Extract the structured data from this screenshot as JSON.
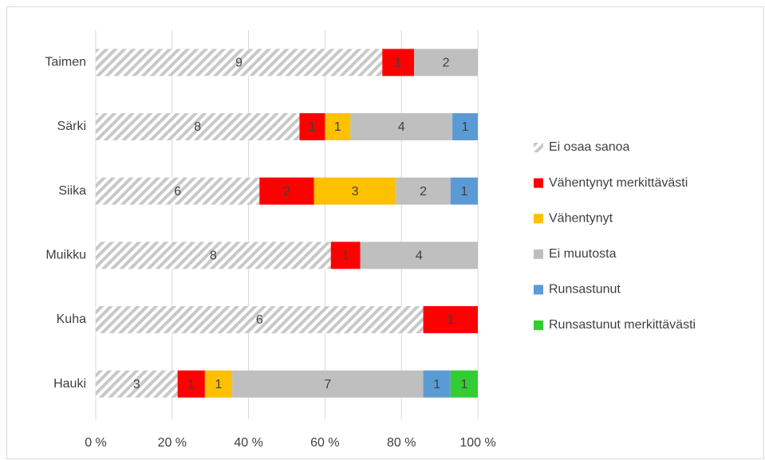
{
  "chart_data": {
    "type": "bar",
    "orientation": "horizontal",
    "stacking": "percent",
    "categories": [
      "Taimen",
      "Särki",
      "Siika",
      "Muikku",
      "Kuha",
      "Hauki"
    ],
    "series": [
      {
        "name": "Ei osaa sanoa",
        "color": "#bfbfbf",
        "pattern": "diagonal-hatch",
        "values": [
          9,
          8,
          6,
          8,
          6,
          3
        ]
      },
      {
        "name": "Vähentynyt merkittävästi",
        "color": "#ff0000",
        "values": [
          1,
          1,
          2,
          1,
          1,
          1
        ]
      },
      {
        "name": "Vähentynyt",
        "color": "#ffc000",
        "values": [
          null,
          1,
          3,
          null,
          null,
          1
        ]
      },
      {
        "name": "Ei muutosta",
        "color": "#bfbfbf",
        "values": [
          2,
          4,
          2,
          4,
          null,
          7
        ]
      },
      {
        "name": "Runsastunut",
        "color": "#5b9bd5",
        "values": [
          null,
          1,
          1,
          null,
          null,
          1
        ]
      },
      {
        "name": "Runsastunut merkittävästi",
        "color": "#33cc33",
        "values": [
          null,
          null,
          null,
          null,
          null,
          1
        ]
      }
    ],
    "xlim": [
      0,
      100
    ],
    "xticks": [
      {
        "value": 0,
        "label": "0 %"
      },
      {
        "value": 20,
        "label": "20 %"
      },
      {
        "value": 40,
        "label": "40 %"
      },
      {
        "value": 60,
        "label": "60 %"
      },
      {
        "value": 80,
        "label": "80 %"
      },
      {
        "value": 100,
        "label": "100 %"
      }
    ],
    "grid": true,
    "legend": "right"
  }
}
